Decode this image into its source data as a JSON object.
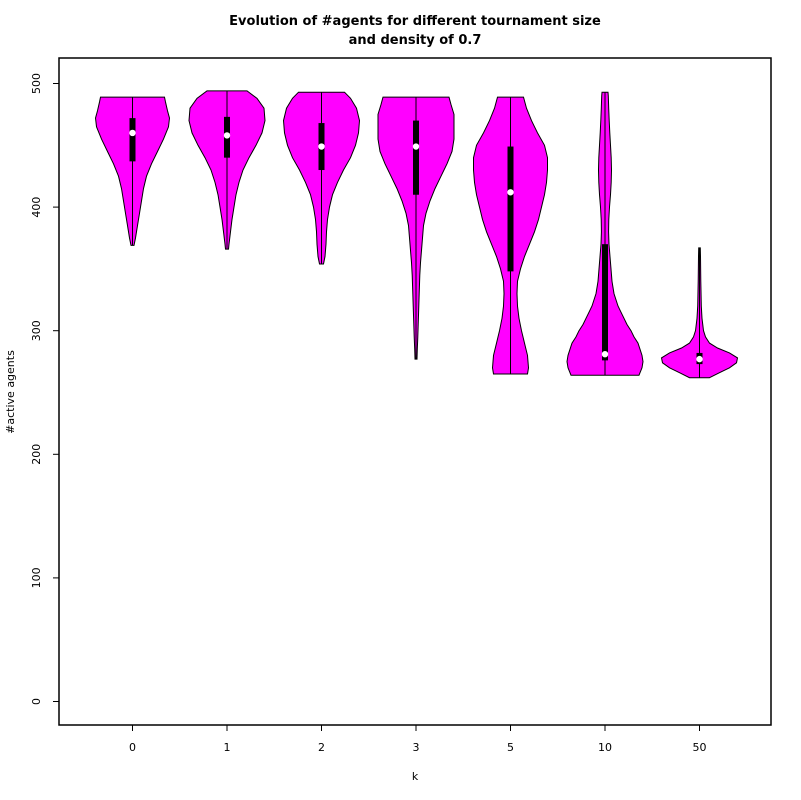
{
  "chart_data": {
    "type": "violin",
    "title": [
      "Evolution of #agents for different tournament size",
      "and density of 0.7"
    ],
    "xlabel": "k",
    "ylabel": "#active agents",
    "categories": [
      "0",
      "1",
      "2",
      "3",
      "5",
      "10",
      "50"
    ],
    "ylim": [
      -20,
      520
    ],
    "yticks": [
      0,
      100,
      200,
      300,
      400,
      500
    ],
    "grid": false,
    "fill_color": "#ff00ff",
    "violins": [
      {
        "category": "0",
        "min": 369,
        "q1": 437,
        "median": 460,
        "q3": 472,
        "max": 489,
        "profile": [
          [
            369,
            1.5
          ],
          [
            375,
            3
          ],
          [
            385,
            5
          ],
          [
            395,
            7
          ],
          [
            405,
            9
          ],
          [
            415,
            11
          ],
          [
            425,
            14
          ],
          [
            435,
            19
          ],
          [
            445,
            25
          ],
          [
            455,
            31
          ],
          [
            465,
            36
          ],
          [
            472,
            37
          ],
          [
            478,
            35
          ],
          [
            485,
            33
          ],
          [
            489,
            32
          ]
        ]
      },
      {
        "category": "1",
        "min": 366,
        "q1": 440,
        "median": 458,
        "q3": 473,
        "max": 494,
        "profile": [
          [
            366,
            1.5
          ],
          [
            370,
            2
          ],
          [
            380,
            3.5
          ],
          [
            390,
            5
          ],
          [
            400,
            7
          ],
          [
            410,
            9
          ],
          [
            420,
            12
          ],
          [
            430,
            16
          ],
          [
            440,
            22
          ],
          [
            450,
            29
          ],
          [
            460,
            35
          ],
          [
            470,
            38
          ],
          [
            480,
            37
          ],
          [
            488,
            30
          ],
          [
            494,
            20
          ]
        ]
      },
      {
        "category": "2",
        "min": 354,
        "q1": 430,
        "median": 449,
        "q3": 468,
        "max": 493,
        "profile": [
          [
            354,
            2
          ],
          [
            360,
            3.5
          ],
          [
            370,
            4.5
          ],
          [
            380,
            5
          ],
          [
            390,
            6
          ],
          [
            400,
            8
          ],
          [
            410,
            11
          ],
          [
            420,
            16
          ],
          [
            430,
            22
          ],
          [
            440,
            29
          ],
          [
            450,
            34
          ],
          [
            460,
            37
          ],
          [
            470,
            38
          ],
          [
            480,
            35
          ],
          [
            488,
            29
          ],
          [
            493,
            23
          ]
        ]
      },
      {
        "category": "3",
        "min": 277,
        "q1": 410,
        "median": 449,
        "q3": 470,
        "max": 489,
        "profile": [
          [
            277,
            1
          ],
          [
            285,
            1.3
          ],
          [
            295,
            1.8
          ],
          [
            305,
            2.2
          ],
          [
            315,
            2.6
          ],
          [
            325,
            3
          ],
          [
            335,
            3.4
          ],
          [
            345,
            3.8
          ],
          [
            355,
            4.5
          ],
          [
            365,
            5.5
          ],
          [
            375,
            6.5
          ],
          [
            385,
            7.5
          ],
          [
            395,
            10
          ],
          [
            405,
            14
          ],
          [
            415,
            19
          ],
          [
            425,
            25
          ],
          [
            435,
            31
          ],
          [
            445,
            36
          ],
          [
            455,
            38
          ],
          [
            465,
            39
          ],
          [
            475,
            38
          ],
          [
            483,
            35
          ],
          [
            489,
            33
          ]
        ]
      },
      {
        "category": "5",
        "min": 265,
        "q1": 348,
        "median": 412,
        "q3": 449,
        "max": 489,
        "profile": [
          [
            265,
            17
          ],
          [
            270,
            18
          ],
          [
            280,
            17
          ],
          [
            290,
            14
          ],
          [
            300,
            11
          ],
          [
            310,
            8.5
          ],
          [
            320,
            7
          ],
          [
            330,
            6.5
          ],
          [
            340,
            7
          ],
          [
            350,
            10
          ],
          [
            360,
            14
          ],
          [
            370,
            19
          ],
          [
            380,
            24
          ],
          [
            390,
            28
          ],
          [
            400,
            31
          ],
          [
            410,
            34
          ],
          [
            420,
            36
          ],
          [
            430,
            37
          ],
          [
            440,
            37
          ],
          [
            450,
            34
          ],
          [
            460,
            27
          ],
          [
            470,
            21
          ],
          [
            480,
            16
          ],
          [
            489,
            13
          ]
        ]
      },
      {
        "category": "10",
        "min": 264,
        "q1": 276,
        "median": 281,
        "q3": 370,
        "max": 493,
        "profile": [
          [
            264,
            34
          ],
          [
            270,
            37
          ],
          [
            275,
            38
          ],
          [
            280,
            37
          ],
          [
            285,
            35
          ],
          [
            290,
            33
          ],
          [
            295,
            29
          ],
          [
            300,
            26
          ],
          [
            305,
            22
          ],
          [
            310,
            19
          ],
          [
            315,
            16
          ],
          [
            320,
            13
          ],
          [
            330,
            9
          ],
          [
            340,
            7
          ],
          [
            350,
            6
          ],
          [
            360,
            5
          ],
          [
            370,
            4
          ],
          [
            380,
            3.6
          ],
          [
            390,
            3.8
          ],
          [
            400,
            4.5
          ],
          [
            410,
            5.5
          ],
          [
            420,
            6.2
          ],
          [
            430,
            6.5
          ],
          [
            440,
            6.2
          ],
          [
            450,
            5.5
          ],
          [
            460,
            4.8
          ],
          [
            470,
            4.2
          ],
          [
            480,
            3.7
          ],
          [
            490,
            3.3
          ],
          [
            493,
            3
          ]
        ]
      },
      {
        "category": "50",
        "min": 262,
        "q1": 273,
        "median": 277,
        "q3": 282,
        "max": 367,
        "profile": [
          [
            262,
            10
          ],
          [
            266,
            20
          ],
          [
            270,
            30
          ],
          [
            274,
            37
          ],
          [
            278,
            38
          ],
          [
            282,
            30
          ],
          [
            286,
            18
          ],
          [
            290,
            10
          ],
          [
            295,
            6
          ],
          [
            300,
            4
          ],
          [
            310,
            2.5
          ],
          [
            320,
            1.8
          ],
          [
            340,
            1.3
          ],
          [
            360,
            1
          ],
          [
            367,
            0.8
          ]
        ]
      }
    ]
  }
}
